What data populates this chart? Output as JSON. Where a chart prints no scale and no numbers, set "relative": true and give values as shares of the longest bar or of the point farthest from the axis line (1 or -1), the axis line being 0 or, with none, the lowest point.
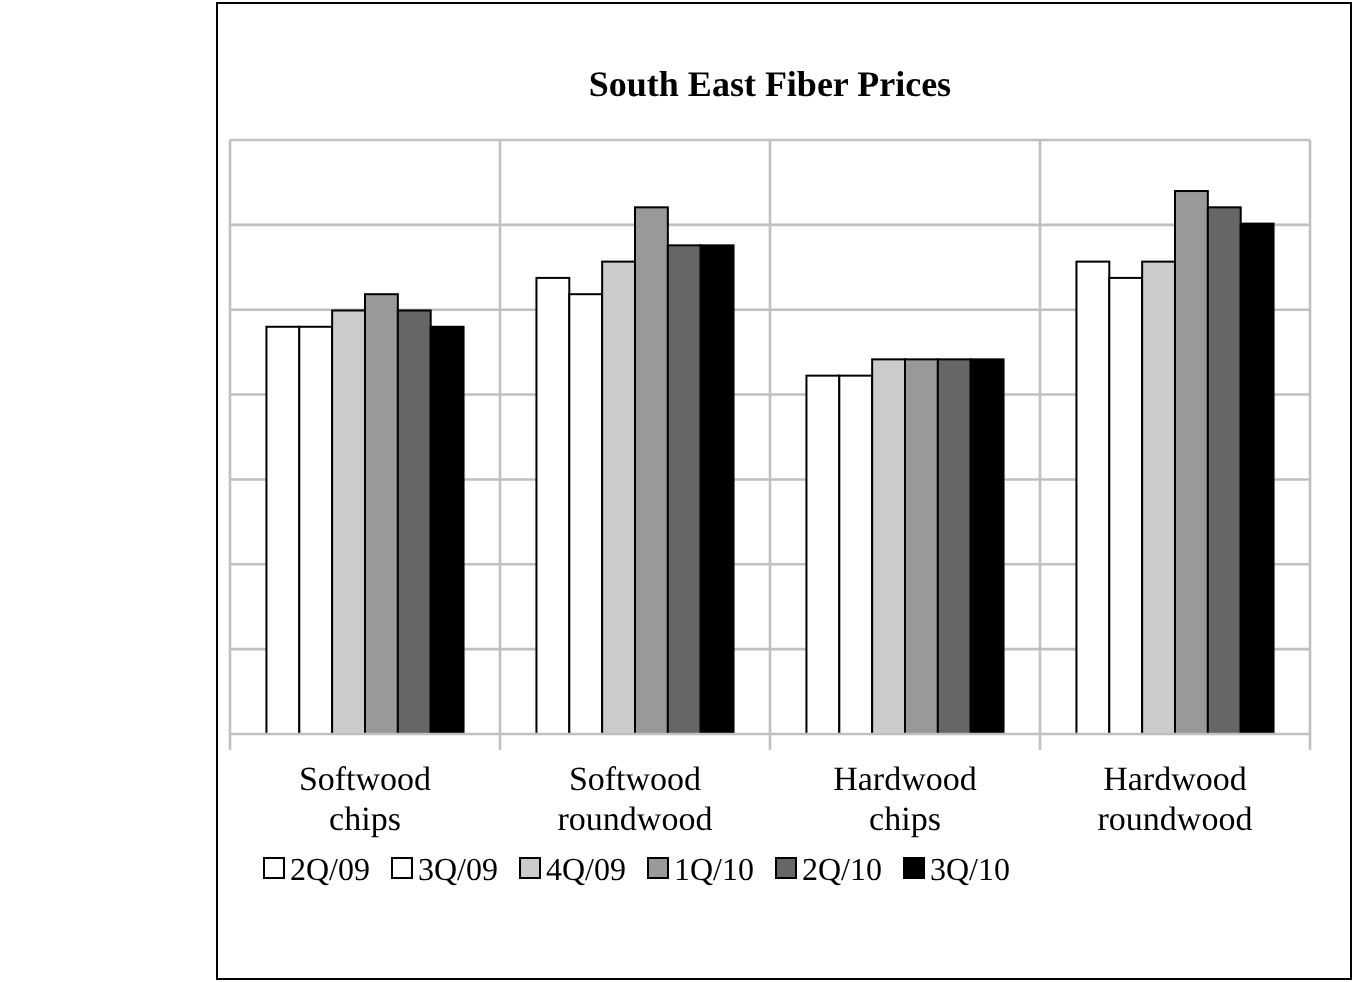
{
  "chart_data": {
    "type": "bar",
    "title": "South East Fiber Prices",
    "relative": true,
    "grid": true,
    "legend": "bottom",
    "categories": [
      "Softwood\nchips",
      "Softwood\nroundwood",
      "Hardwood\nchips",
      "Hardwood\nroundwood"
    ],
    "series": [
      {
        "name": "2Q/09",
        "color": "#ffffff",
        "values": [
          0.75,
          0.84,
          0.66,
          0.87
        ]
      },
      {
        "name": "3Q/09",
        "color": "#ffffff",
        "values": [
          0.75,
          0.81,
          0.66,
          0.84
        ]
      },
      {
        "name": "4Q/09",
        "color": "#cccccc",
        "values": [
          0.78,
          0.87,
          0.69,
          0.87
        ]
      },
      {
        "name": "1Q/10",
        "color": "#999999",
        "values": [
          0.81,
          0.97,
          0.69,
          1
        ]
      },
      {
        "name": "2Q/10",
        "color": "#666666",
        "values": [
          0.78,
          0.9,
          0.69,
          0.97
        ]
      },
      {
        "name": "3Q/10",
        "color": "#000000",
        "values": [
          0.75,
          0.9,
          0.69,
          0.94
        ]
      }
    ]
  }
}
